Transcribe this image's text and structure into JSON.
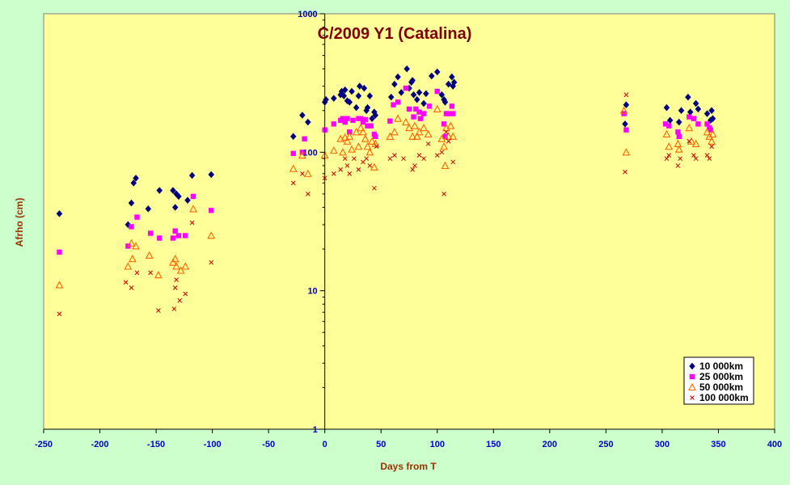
{
  "chart_data": {
    "type": "scatter",
    "title": "C/2009 Y1 (Catalina)",
    "xlabel": "Days from T",
    "ylabel": "Afrho (cm)",
    "xlim": [
      -250,
      400
    ],
    "ylim": [
      1,
      1000
    ],
    "y_scale": "log",
    "x_ticks": [
      -250,
      -200,
      -150,
      -100,
      -50,
      0,
      50,
      100,
      150,
      200,
      250,
      300,
      350,
      400
    ],
    "y_ticks": [
      1,
      10,
      100,
      1000
    ],
    "grid": false,
    "legend_position": "bottom-right",
    "colors": {
      "figure_bg": "#ccffcc",
      "plot_bg": "#ffff99",
      "title": "#800000",
      "axis_title": "#993300",
      "tick_label": "#0000cc"
    },
    "series": [
      {
        "name": "10 000km",
        "marker": "diamond",
        "color": "#000080",
        "points": [
          [
            -236,
            36
          ],
          [
            -175,
            30
          ],
          [
            -172,
            43
          ],
          [
            -170,
            60
          ],
          [
            -168,
            65
          ],
          [
            -157,
            39
          ],
          [
            -147,
            53
          ],
          [
            -135,
            53
          ],
          [
            -133,
            40
          ],
          [
            -132,
            50
          ],
          [
            -130,
            48
          ],
          [
            -122,
            45
          ],
          [
            -118,
            68
          ],
          [
            -101,
            69
          ],
          [
            -28,
            130
          ],
          [
            -20,
            185
          ],
          [
            -15,
            165
          ],
          [
            0,
            230
          ],
          [
            1,
            240
          ],
          [
            8,
            245
          ],
          [
            14,
            260
          ],
          [
            15,
            275
          ],
          [
            17,
            255
          ],
          [
            18,
            282
          ],
          [
            20,
            235
          ],
          [
            22,
            230
          ],
          [
            24,
            275
          ],
          [
            28,
            210
          ],
          [
            30,
            255
          ],
          [
            31,
            300
          ],
          [
            35,
            290
          ],
          [
            37,
            200
          ],
          [
            38,
            210
          ],
          [
            40,
            255
          ],
          [
            42,
            175
          ],
          [
            44,
            195
          ],
          [
            45,
            185
          ],
          [
            59,
            250
          ],
          [
            62,
            310
          ],
          [
            65,
            350
          ],
          [
            68,
            270
          ],
          [
            73,
            400
          ],
          [
            75,
            290
          ],
          [
            77,
            320
          ],
          [
            78,
            330
          ],
          [
            79,
            260
          ],
          [
            82,
            240
          ],
          [
            84,
            270
          ],
          [
            88,
            225
          ],
          [
            90,
            265
          ],
          [
            95,
            355
          ],
          [
            100,
            380
          ],
          [
            104,
            260
          ],
          [
            106,
            240
          ],
          [
            107,
            230
          ],
          [
            110,
            310
          ],
          [
            113,
            350
          ],
          [
            114,
            300
          ],
          [
            115,
            320
          ],
          [
            267,
            160
          ],
          [
            268,
            220
          ],
          [
            304,
            210
          ],
          [
            307,
            170
          ],
          [
            315,
            165
          ],
          [
            317,
            200
          ],
          [
            323,
            250
          ],
          [
            325,
            195
          ],
          [
            330,
            225
          ],
          [
            332,
            205
          ],
          [
            340,
            190
          ],
          [
            343,
            170
          ],
          [
            344,
            200
          ],
          [
            345,
            175
          ]
        ]
      },
      {
        "name": "25 000km",
        "marker": "square",
        "color": "#ff00ff",
        "points": [
          [
            -236,
            19
          ],
          [
            -175,
            21
          ],
          [
            -172,
            29
          ],
          [
            -167,
            34
          ],
          [
            -155,
            26
          ],
          [
            -147,
            24
          ],
          [
            -135,
            24
          ],
          [
            -133,
            27
          ],
          [
            -130,
            25
          ],
          [
            -124,
            25
          ],
          [
            -117,
            48
          ],
          [
            -101,
            38
          ],
          [
            -28,
            98
          ],
          [
            -20,
            100
          ],
          [
            -18,
            125
          ],
          [
            0,
            145
          ],
          [
            8,
            160
          ],
          [
            14,
            170
          ],
          [
            16,
            175
          ],
          [
            18,
            165
          ],
          [
            20,
            175
          ],
          [
            22,
            140
          ],
          [
            25,
            170
          ],
          [
            30,
            175
          ],
          [
            32,
            175
          ],
          [
            34,
            165
          ],
          [
            36,
            172
          ],
          [
            38,
            155
          ],
          [
            41,
            155
          ],
          [
            44,
            135
          ],
          [
            45,
            130
          ],
          [
            58,
            168
          ],
          [
            61,
            220
          ],
          [
            65,
            230
          ],
          [
            72,
            290
          ],
          [
            75,
            205
          ],
          [
            79,
            180
          ],
          [
            81,
            205
          ],
          [
            84,
            195
          ],
          [
            85,
            175
          ],
          [
            88,
            190
          ],
          [
            93,
            215
          ],
          [
            100,
            275
          ],
          [
            106,
            160
          ],
          [
            107,
            130
          ],
          [
            108,
            190
          ],
          [
            110,
            190
          ],
          [
            113,
            215
          ],
          [
            114,
            190
          ],
          [
            266,
            190
          ],
          [
            268,
            145
          ],
          [
            303,
            160
          ],
          [
            306,
            155
          ],
          [
            314,
            140
          ],
          [
            315,
            130
          ],
          [
            324,
            180
          ],
          [
            328,
            175
          ],
          [
            332,
            160
          ],
          [
            340,
            160
          ],
          [
            342,
            150
          ],
          [
            343,
            145
          ]
        ]
      },
      {
        "name": "50 000km",
        "marker": "triangle",
        "color": "#ff6600",
        "points": [
          [
            -236,
            11
          ],
          [
            -175,
            15
          ],
          [
            -172,
            22
          ],
          [
            -171,
            17
          ],
          [
            -168,
            21
          ],
          [
            -156,
            18
          ],
          [
            -148,
            13
          ],
          [
            -135,
            16
          ],
          [
            -133,
            17
          ],
          [
            -132,
            15
          ],
          [
            -128,
            14
          ],
          [
            -124,
            15
          ],
          [
            -117,
            39
          ],
          [
            -101,
            25
          ],
          [
            -28,
            76
          ],
          [
            -20,
            95
          ],
          [
            -15,
            70
          ],
          [
            0,
            95
          ],
          [
            8,
            103
          ],
          [
            14,
            125
          ],
          [
            16,
            100
          ],
          [
            18,
            128
          ],
          [
            20,
            120
          ],
          [
            22,
            130
          ],
          [
            24,
            105
          ],
          [
            28,
            140
          ],
          [
            30,
            110
          ],
          [
            32,
            150
          ],
          [
            34,
            140
          ],
          [
            36,
            125
          ],
          [
            38,
            110
          ],
          [
            40,
            100
          ],
          [
            42,
            120
          ],
          [
            44,
            78
          ],
          [
            45,
            115
          ],
          [
            58,
            130
          ],
          [
            62,
            140
          ],
          [
            65,
            175
          ],
          [
            72,
            165
          ],
          [
            75,
            150
          ],
          [
            78,
            130
          ],
          [
            80,
            155
          ],
          [
            82,
            130
          ],
          [
            84,
            140
          ],
          [
            88,
            150
          ],
          [
            92,
            135
          ],
          [
            100,
            205
          ],
          [
            104,
            125
          ],
          [
            106,
            110
          ],
          [
            107,
            80
          ],
          [
            108,
            150
          ],
          [
            110,
            130
          ],
          [
            112,
            155
          ],
          [
            114,
            130
          ],
          [
            266,
            200
          ],
          [
            268,
            100
          ],
          [
            304,
            135
          ],
          [
            306,
            110
          ],
          [
            314,
            115
          ],
          [
            315,
            105
          ],
          [
            324,
            150
          ],
          [
            326,
            120
          ],
          [
            330,
            115
          ],
          [
            340,
            140
          ],
          [
            342,
            130
          ],
          [
            344,
            120
          ],
          [
            345,
            135
          ]
        ]
      },
      {
        "name": "100 000km",
        "marker": "x",
        "color": "#cc0000",
        "points": [
          [
            -236,
            6.8
          ],
          [
            -177,
            11.5
          ],
          [
            -172,
            10.5
          ],
          [
            -167,
            13.5
          ],
          [
            -155,
            13.5
          ],
          [
            -148,
            7.2
          ],
          [
            -134,
            7.4
          ],
          [
            -133,
            10.5
          ],
          [
            -132,
            12
          ],
          [
            -129,
            8.5
          ],
          [
            -124,
            9.5
          ],
          [
            -118,
            31
          ],
          [
            -101,
            16
          ],
          [
            -28,
            60
          ],
          [
            -20,
            70
          ],
          [
            -15,
            50
          ],
          [
            0,
            65
          ],
          [
            8,
            70
          ],
          [
            14,
            75
          ],
          [
            18,
            90
          ],
          [
            20,
            80
          ],
          [
            22,
            70
          ],
          [
            26,
            90
          ],
          [
            30,
            75
          ],
          [
            34,
            85
          ],
          [
            37,
            90
          ],
          [
            40,
            80
          ],
          [
            44,
            55
          ],
          [
            46,
            110
          ],
          [
            58,
            90
          ],
          [
            62,
            95
          ],
          [
            70,
            90
          ],
          [
            78,
            75
          ],
          [
            80,
            80
          ],
          [
            84,
            95
          ],
          [
            88,
            90
          ],
          [
            92,
            115
          ],
          [
            100,
            95
          ],
          [
            104,
            100
          ],
          [
            106,
            50
          ],
          [
            108,
            140
          ],
          [
            110,
            120
          ],
          [
            114,
            85
          ],
          [
            267,
            72
          ],
          [
            268,
            260
          ],
          [
            304,
            90
          ],
          [
            306,
            95
          ],
          [
            314,
            80
          ],
          [
            316,
            90
          ],
          [
            324,
            120
          ],
          [
            328,
            95
          ],
          [
            330,
            90
          ],
          [
            340,
            95
          ],
          [
            342,
            90
          ],
          [
            344,
            110
          ]
        ]
      }
    ]
  }
}
